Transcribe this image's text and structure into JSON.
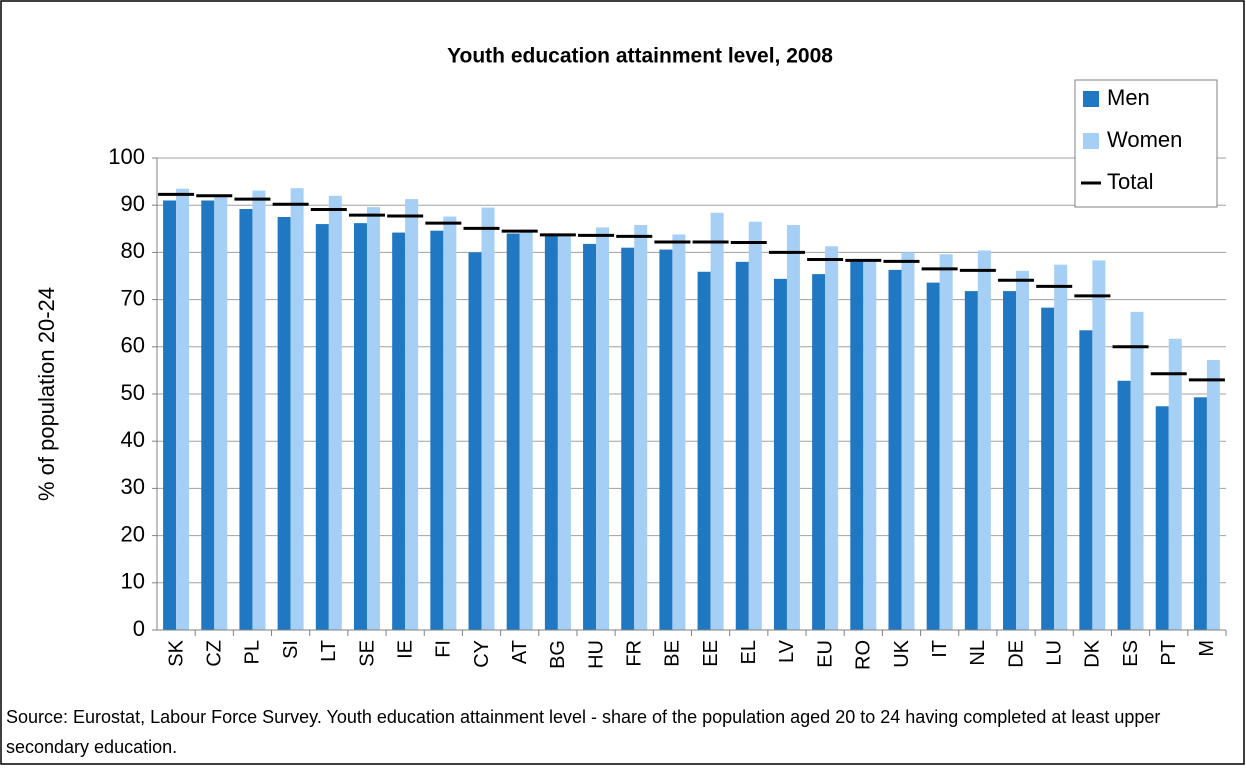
{
  "chart_data": {
    "type": "bar",
    "title": "Youth education attainment level, 2008",
    "y_label": "% of population 20-24",
    "caption": "Source: Eurostat, Labour Force Survey. Youth education attainment level - share of the population aged 20 to 24 having completed at least upper secondary education.",
    "categories": [
      "SK",
      "CZ",
      "PL",
      "SI",
      "LT",
      "SE",
      "IE",
      "FI",
      "CY",
      "AT",
      "BG",
      "HU",
      "FR",
      "BE",
      "EE",
      "EL",
      "LV",
      "EU",
      "RO",
      "UK",
      "IT",
      "NL",
      "DE",
      "LU",
      "DK",
      "ES",
      "PT",
      "M"
    ],
    "series": [
      {
        "name": "Men",
        "color": "#1f78c1",
        "kind": "bar",
        "values": [
          91,
          91,
          89.2,
          87.5,
          86,
          86.2,
          84.2,
          84.6,
          80,
          84,
          84,
          81.8,
          81,
          80.6,
          75.9,
          78,
          74.4,
          75.4,
          78,
          76.3,
          73.6,
          71.8,
          71.8,
          68.3,
          63.5,
          52.8,
          47.4,
          49.3
        ]
      },
      {
        "name": "Women",
        "color": "#a6cff5",
        "kind": "bar",
        "values": [
          93.5,
          91.8,
          93.1,
          93.6,
          92,
          89.6,
          91.3,
          87.6,
          89.5,
          84.8,
          84,
          85.3,
          85.8,
          83.8,
          88.4,
          86.5,
          85.8,
          81.3,
          78,
          80,
          79.6,
          80.4,
          76.1,
          77.4,
          78.3,
          67.4,
          61.7,
          57.2
        ]
      },
      {
        "name": "Total",
        "color": "#000000",
        "kind": "dash",
        "values": [
          92.3,
          92,
          91.3,
          90.2,
          89.1,
          87.9,
          87.7,
          86.2,
          85.1,
          84.5,
          83.7,
          83.6,
          83.4,
          82.2,
          82.2,
          82.1,
          80,
          78.5,
          78.3,
          78.1,
          76.5,
          76.2,
          74.1,
          72.8,
          70.8,
          60,
          54.3,
          53
        ]
      }
    ],
    "ylim": [
      0,
      100
    ],
    "yticks": [
      0,
      10,
      20,
      30,
      40,
      50,
      60,
      70,
      80,
      90,
      100
    ],
    "grid": true
  }
}
